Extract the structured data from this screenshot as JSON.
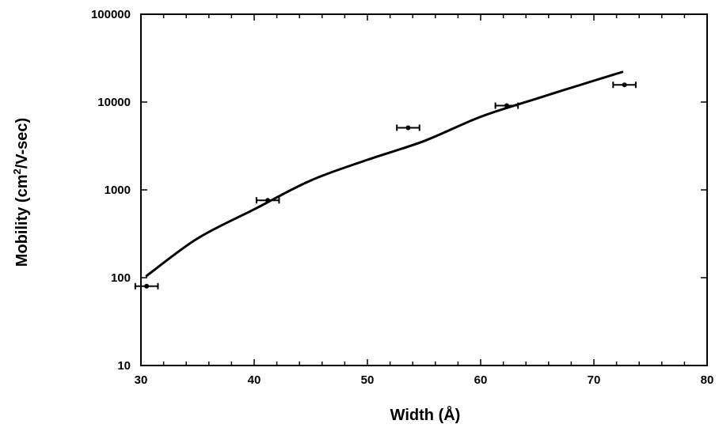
{
  "chart_data": {
    "type": "scatter",
    "title": "",
    "xlabel": "Width (Å)",
    "ylabel": {
      "prefix": "Mobility (cm",
      "sup": "2",
      "suffix": "/V-sec)"
    },
    "xlim": [
      30,
      80
    ],
    "ylim": [
      10,
      100000
    ],
    "yscale": "log",
    "grid": false,
    "legend": "none",
    "x_ticks": [
      30,
      40,
      50,
      60,
      70,
      80
    ],
    "y_ticks": [
      10,
      100,
      1000,
      10000,
      100000
    ],
    "x_tick_labels": [
      "30",
      "40",
      "50",
      "60",
      "70",
      "80"
    ],
    "y_tick_labels": [
      "10",
      "100",
      "1000",
      "10000",
      "100000"
    ],
    "x_minor_step": 2,
    "series": [
      {
        "kind": "points_with_xerr",
        "x": [
          30.5,
          41.2,
          53.6,
          62.3,
          72.7
        ],
        "y": [
          80,
          760,
          5100,
          9100,
          15700
        ],
        "xerr": [
          1.0,
          1.0,
          1.0,
          1.0,
          1.0
        ]
      },
      {
        "kind": "fit_curve",
        "x": [
          30.5,
          35,
          40,
          45,
          50,
          55,
          60,
          65,
          70,
          72.5
        ],
        "y": [
          105,
          280,
          600,
          1280,
          2200,
          3600,
          6800,
          11000,
          17500,
          22000
        ]
      }
    ],
    "colors": {
      "marks": "#000000",
      "background": "#ffffff"
    }
  }
}
